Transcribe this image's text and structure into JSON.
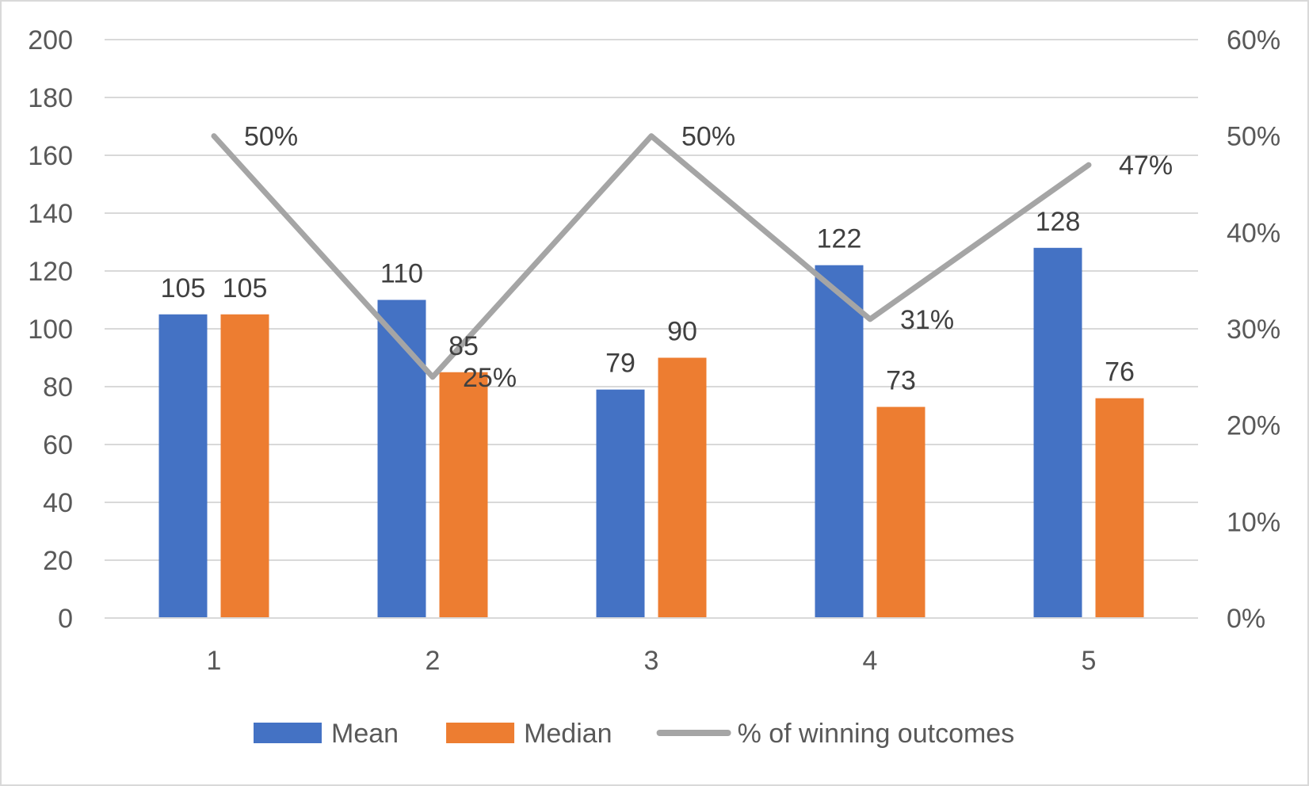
{
  "chart_data": {
    "type": "bar",
    "categories": [
      "1",
      "2",
      "3",
      "4",
      "5"
    ],
    "series": [
      {
        "name": "Mean",
        "kind": "bar",
        "axis": "left",
        "color": "#4472C4",
        "values": [
          105,
          110,
          79,
          122,
          128
        ],
        "labels": [
          "105",
          "110",
          "79",
          "122",
          "128"
        ]
      },
      {
        "name": "Median",
        "kind": "bar",
        "axis": "left",
        "color": "#ED7D31",
        "values": [
          105,
          85,
          90,
          73,
          76
        ],
        "labels": [
          "105",
          "85",
          "90",
          "73",
          "76"
        ]
      },
      {
        "name": "% of winning outcomes",
        "kind": "line",
        "axis": "right",
        "color": "#A5A5A5",
        "values": [
          50,
          25,
          50,
          31,
          47
        ],
        "labels": [
          "50%",
          "25%",
          "50%",
          "31%",
          "47%"
        ]
      }
    ],
    "ylim": [
      0,
      200
    ],
    "yticks": [
      "0",
      "20",
      "40",
      "60",
      "80",
      "100",
      "120",
      "140",
      "160",
      "180",
      "200"
    ],
    "y2lim": [
      0,
      60
    ],
    "y2ticks": [
      "0%",
      "10%",
      "20%",
      "30%",
      "40%",
      "50%",
      "60%"
    ],
    "grid": true,
    "legend_position": "bottom",
    "gridline_color": "#d9d9d9"
  }
}
